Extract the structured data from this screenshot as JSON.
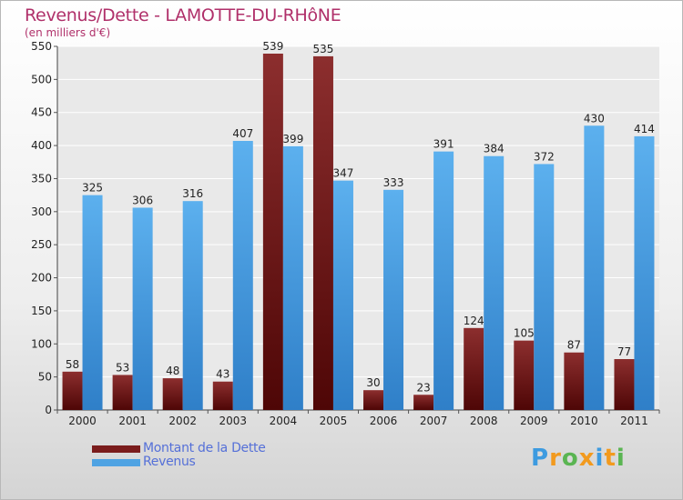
{
  "chart_data": {
    "type": "bar",
    "title": "Revenus/Dette - LAMOTTE-DU-RHôNE",
    "subtitle": "(en milliers d'€)",
    "categories": [
      "2000",
      "2001",
      "2002",
      "2003",
      "2004",
      "2005",
      "2006",
      "2007",
      "2008",
      "2009",
      "2010",
      "2011"
    ],
    "series": [
      {
        "name": "Montant de la Dette",
        "color": "#7a1c1c",
        "values": [
          58,
          53,
          48,
          43,
          539,
          535,
          30,
          23,
          124,
          105,
          87,
          77
        ]
      },
      {
        "name": "Revenus",
        "color": "#4fa3e3",
        "values": [
          325,
          306,
          316,
          407,
          399,
          347,
          333,
          391,
          384,
          372,
          430,
          414
        ]
      }
    ],
    "ylim": [
      0,
      550
    ],
    "yticks": [
      0,
      50,
      100,
      150,
      200,
      250,
      300,
      350,
      400,
      450,
      500,
      550
    ],
    "grid": true,
    "legend_position": "bottom-left"
  },
  "brand": {
    "letters": [
      "P",
      "r",
      "o",
      "x",
      "i",
      "t",
      "i"
    ],
    "colors": [
      "#3d9be0",
      "#f29a1e",
      "#5ab552",
      "#f29a1e",
      "#3d9be0",
      "#f29a1e",
      "#5ab552"
    ]
  }
}
